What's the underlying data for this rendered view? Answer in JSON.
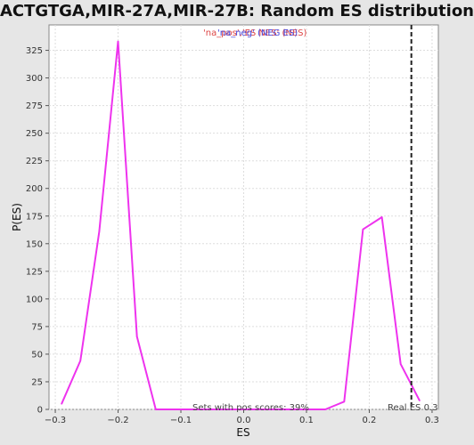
{
  "chart_data": {
    "type": "line",
    "title": "ACTGTGA,MIR-27A,MIR-27B: Random ES distribution",
    "xlabel": "ES",
    "ylabel": "P(ES)",
    "xlim": [
      -0.31,
      0.31
    ],
    "ylim": [
      0,
      348
    ],
    "x_ticks": [
      -0.3,
      -0.2,
      -0.1,
      0.0,
      0.1,
      0.2,
      0.3
    ],
    "x_tick_labels": [
      "−0.3",
      "−0.2",
      "−0.1",
      "0.0",
      "0.1",
      "0.2",
      "0.3"
    ],
    "y_ticks": [
      0,
      25,
      50,
      75,
      100,
      125,
      150,
      175,
      200,
      225,
      250,
      275,
      300,
      325
    ],
    "y_tick_labels": [
      "0",
      "25",
      "50",
      "75",
      "100",
      "125",
      "150",
      "175",
      "200",
      "225",
      "250",
      "275",
      "300",
      "325"
    ],
    "grid": true,
    "series": [
      {
        "color": "#ee33ee",
        "x": [
          -0.29,
          -0.26,
          -0.23,
          -0.2,
          -0.17,
          -0.14,
          -0.11,
          -0.08,
          -0.05,
          -0.02,
          0.01,
          0.04,
          0.07,
          0.1,
          0.13,
          0.16,
          0.19,
          0.22,
          0.25,
          0.28
        ],
        "y": [
          5,
          44,
          161,
          333,
          66,
          0,
          0,
          0,
          0,
          0,
          0,
          0,
          0,
          0,
          0,
          7,
          163,
          174,
          41,
          8
        ]
      }
    ],
    "real_es": 0.267,
    "real_es_label": "Real ES 0.3",
    "legend_text": "'na_pos','ES NES' (NES)",
    "legend_text_2": "'na_neg' (NEG ES)",
    "annotation": "Sets with pos scores: 39%"
  },
  "colors": {
    "background": "#e6e6e6",
    "plot_background": "#ffffff",
    "line": "#ee33ee",
    "grid": "#dddddd",
    "real_es_line": "#222222"
  }
}
